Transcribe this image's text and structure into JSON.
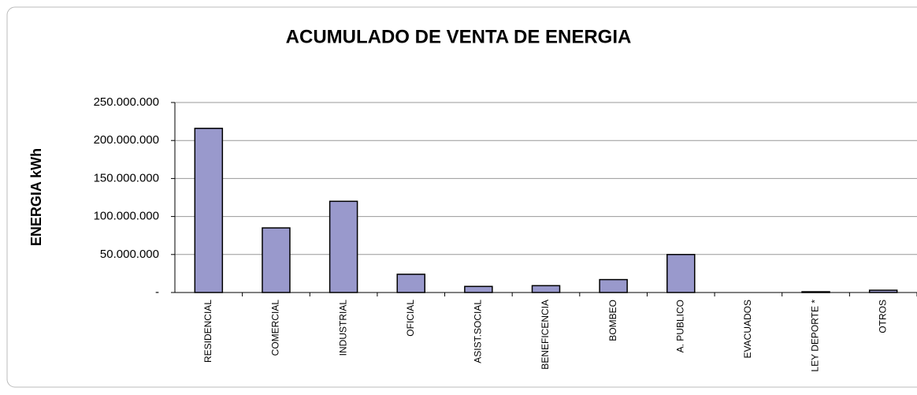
{
  "chart_data": {
    "type": "bar",
    "title": "ACUMULADO DE VENTA DE ENERGIA",
    "y_label": "ENERGIA kWh",
    "categories": [
      "RESIDENCIAL",
      "COMERCIAL",
      "INDUSTRIAL",
      "OFICIAL",
      "ASIST.SOCIAL",
      "BENEFICENCIA",
      "BOMBEO",
      "A. PUBLICO",
      "EVACUADOS",
      "LEY DEPORTE *",
      "OTROS"
    ],
    "values": [
      216000000,
      85000000,
      120000000,
      24000000,
      8000000,
      9000000,
      17000000,
      50000000,
      0,
      1000000,
      3000000
    ],
    "color": "#9999cc",
    "ylim": [
      0,
      250000000
    ],
    "yticks": [
      {
        "value": 0,
        "label": "-"
      },
      {
        "value": 50000000,
        "label": "50.000.000"
      },
      {
        "value": 100000000,
        "label": "100.000.000"
      },
      {
        "value": 150000000,
        "label": "150.000.000"
      },
      {
        "value": 200000000,
        "label": "200.000.000"
      },
      {
        "value": 250000000,
        "label": "250.000.000"
      }
    ],
    "grid": true
  }
}
